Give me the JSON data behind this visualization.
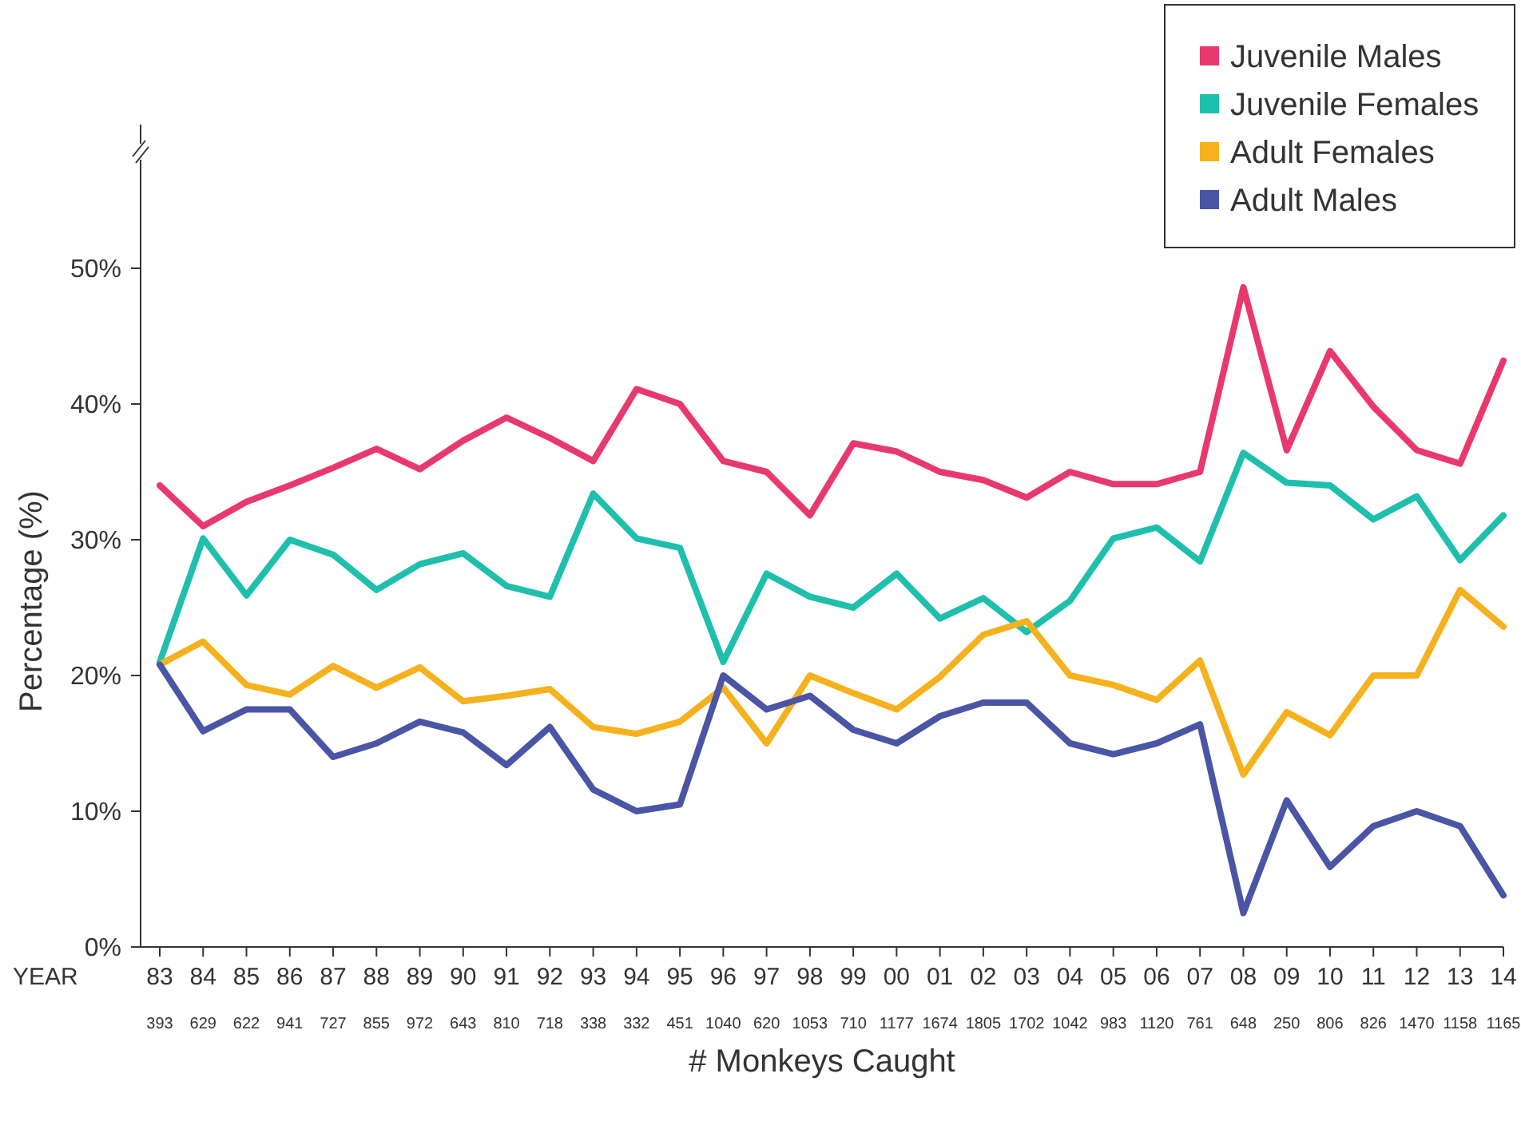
{
  "chart_data": {
    "type": "line",
    "xlabel": "# Monkeys Caught",
    "ylabel": "Percentage (%)",
    "categories": [
      "83",
      "84",
      "85",
      "86",
      "87",
      "88",
      "89",
      "90",
      "91",
      "92",
      "93",
      "94",
      "95",
      "96",
      "97",
      "98",
      "99",
      "00",
      "01",
      "02",
      "03",
      "04",
      "05",
      "06",
      "07",
      "08",
      "09",
      "10",
      "11",
      "12",
      "13",
      "14"
    ],
    "series": [
      {
        "name": "Juvenile Males",
        "color": "#e8396f",
        "values": [
          34,
          31,
          32.8,
          34,
          35.3,
          36.7,
          35.2,
          37.3,
          39,
          37.5,
          35.8,
          41.1,
          40,
          35.8,
          35,
          31.8,
          37.1,
          36.5,
          35,
          34.4,
          33.1,
          35,
          34.1,
          34.1,
          35,
          48.6,
          36.6,
          43.9,
          39.8,
          36.6,
          35.6,
          43.2
        ]
      },
      {
        "name": "Juvenile Females",
        "color": "#1fbfad",
        "values": [
          21,
          30.1,
          25.9,
          30,
          28.9,
          26.3,
          28.2,
          29,
          26.6,
          25.8,
          33.4,
          30.1,
          29.4,
          21,
          27.5,
          25.8,
          25,
          27.5,
          24.2,
          25.7,
          23.2,
          25.5,
          30.1,
          30.9,
          28.4,
          36.4,
          34.2,
          34,
          31.5,
          33.2,
          28.5,
          31.8
        ]
      },
      {
        "name": "Adult Females",
        "color": "#f5b21e",
        "values": [
          20.8,
          22.5,
          19.3,
          18.6,
          20.7,
          19.1,
          20.6,
          18.1,
          18.5,
          19,
          16.2,
          15.7,
          16.6,
          19.1,
          15,
          20,
          18.7,
          17.5,
          19.9,
          23,
          24,
          20,
          19.3,
          18.2,
          21.1,
          12.7,
          17.3,
          15.6,
          20,
          20,
          26.3,
          23.6
        ]
      },
      {
        "name": "Adult Males",
        "color": "#4a55a5",
        "values": [
          20.8,
          15.9,
          17.5,
          17.5,
          14,
          15,
          16.6,
          15.8,
          13.4,
          16.2,
          11.6,
          10,
          10.5,
          20,
          17.5,
          18.5,
          16,
          15,
          17,
          18,
          18,
          15,
          14.2,
          15,
          16.4,
          2.5,
          10.8,
          5.9,
          8.9,
          10,
          8.9,
          3.8
        ]
      }
    ],
    "ylim": [
      0,
      58
    ],
    "yticks": [
      {
        "value": 0,
        "label": "0%"
      },
      {
        "value": 10,
        "label": "10%"
      },
      {
        "value": 20,
        "label": "20%"
      },
      {
        "value": 30,
        "label": "30%"
      },
      {
        "value": 40,
        "label": "40%"
      },
      {
        "value": 50,
        "label": "50%"
      }
    ],
    "grid": false,
    "legend": "top right",
    "marker": "none",
    "line_style": "solid",
    "annotations": [
      "YEAR",
      "393",
      "629",
      "622",
      "941",
      "727",
      "855",
      "972",
      "643",
      "810",
      "718",
      "338",
      "332",
      "451",
      "1040",
      "620",
      "1053",
      "710",
      "1177",
      "1674",
      "1805",
      "1702",
      "1042",
      "983",
      "1120",
      "761",
      "648",
      "250",
      "806",
      "826",
      "1470",
      "1158",
      "1165"
    ]
  }
}
